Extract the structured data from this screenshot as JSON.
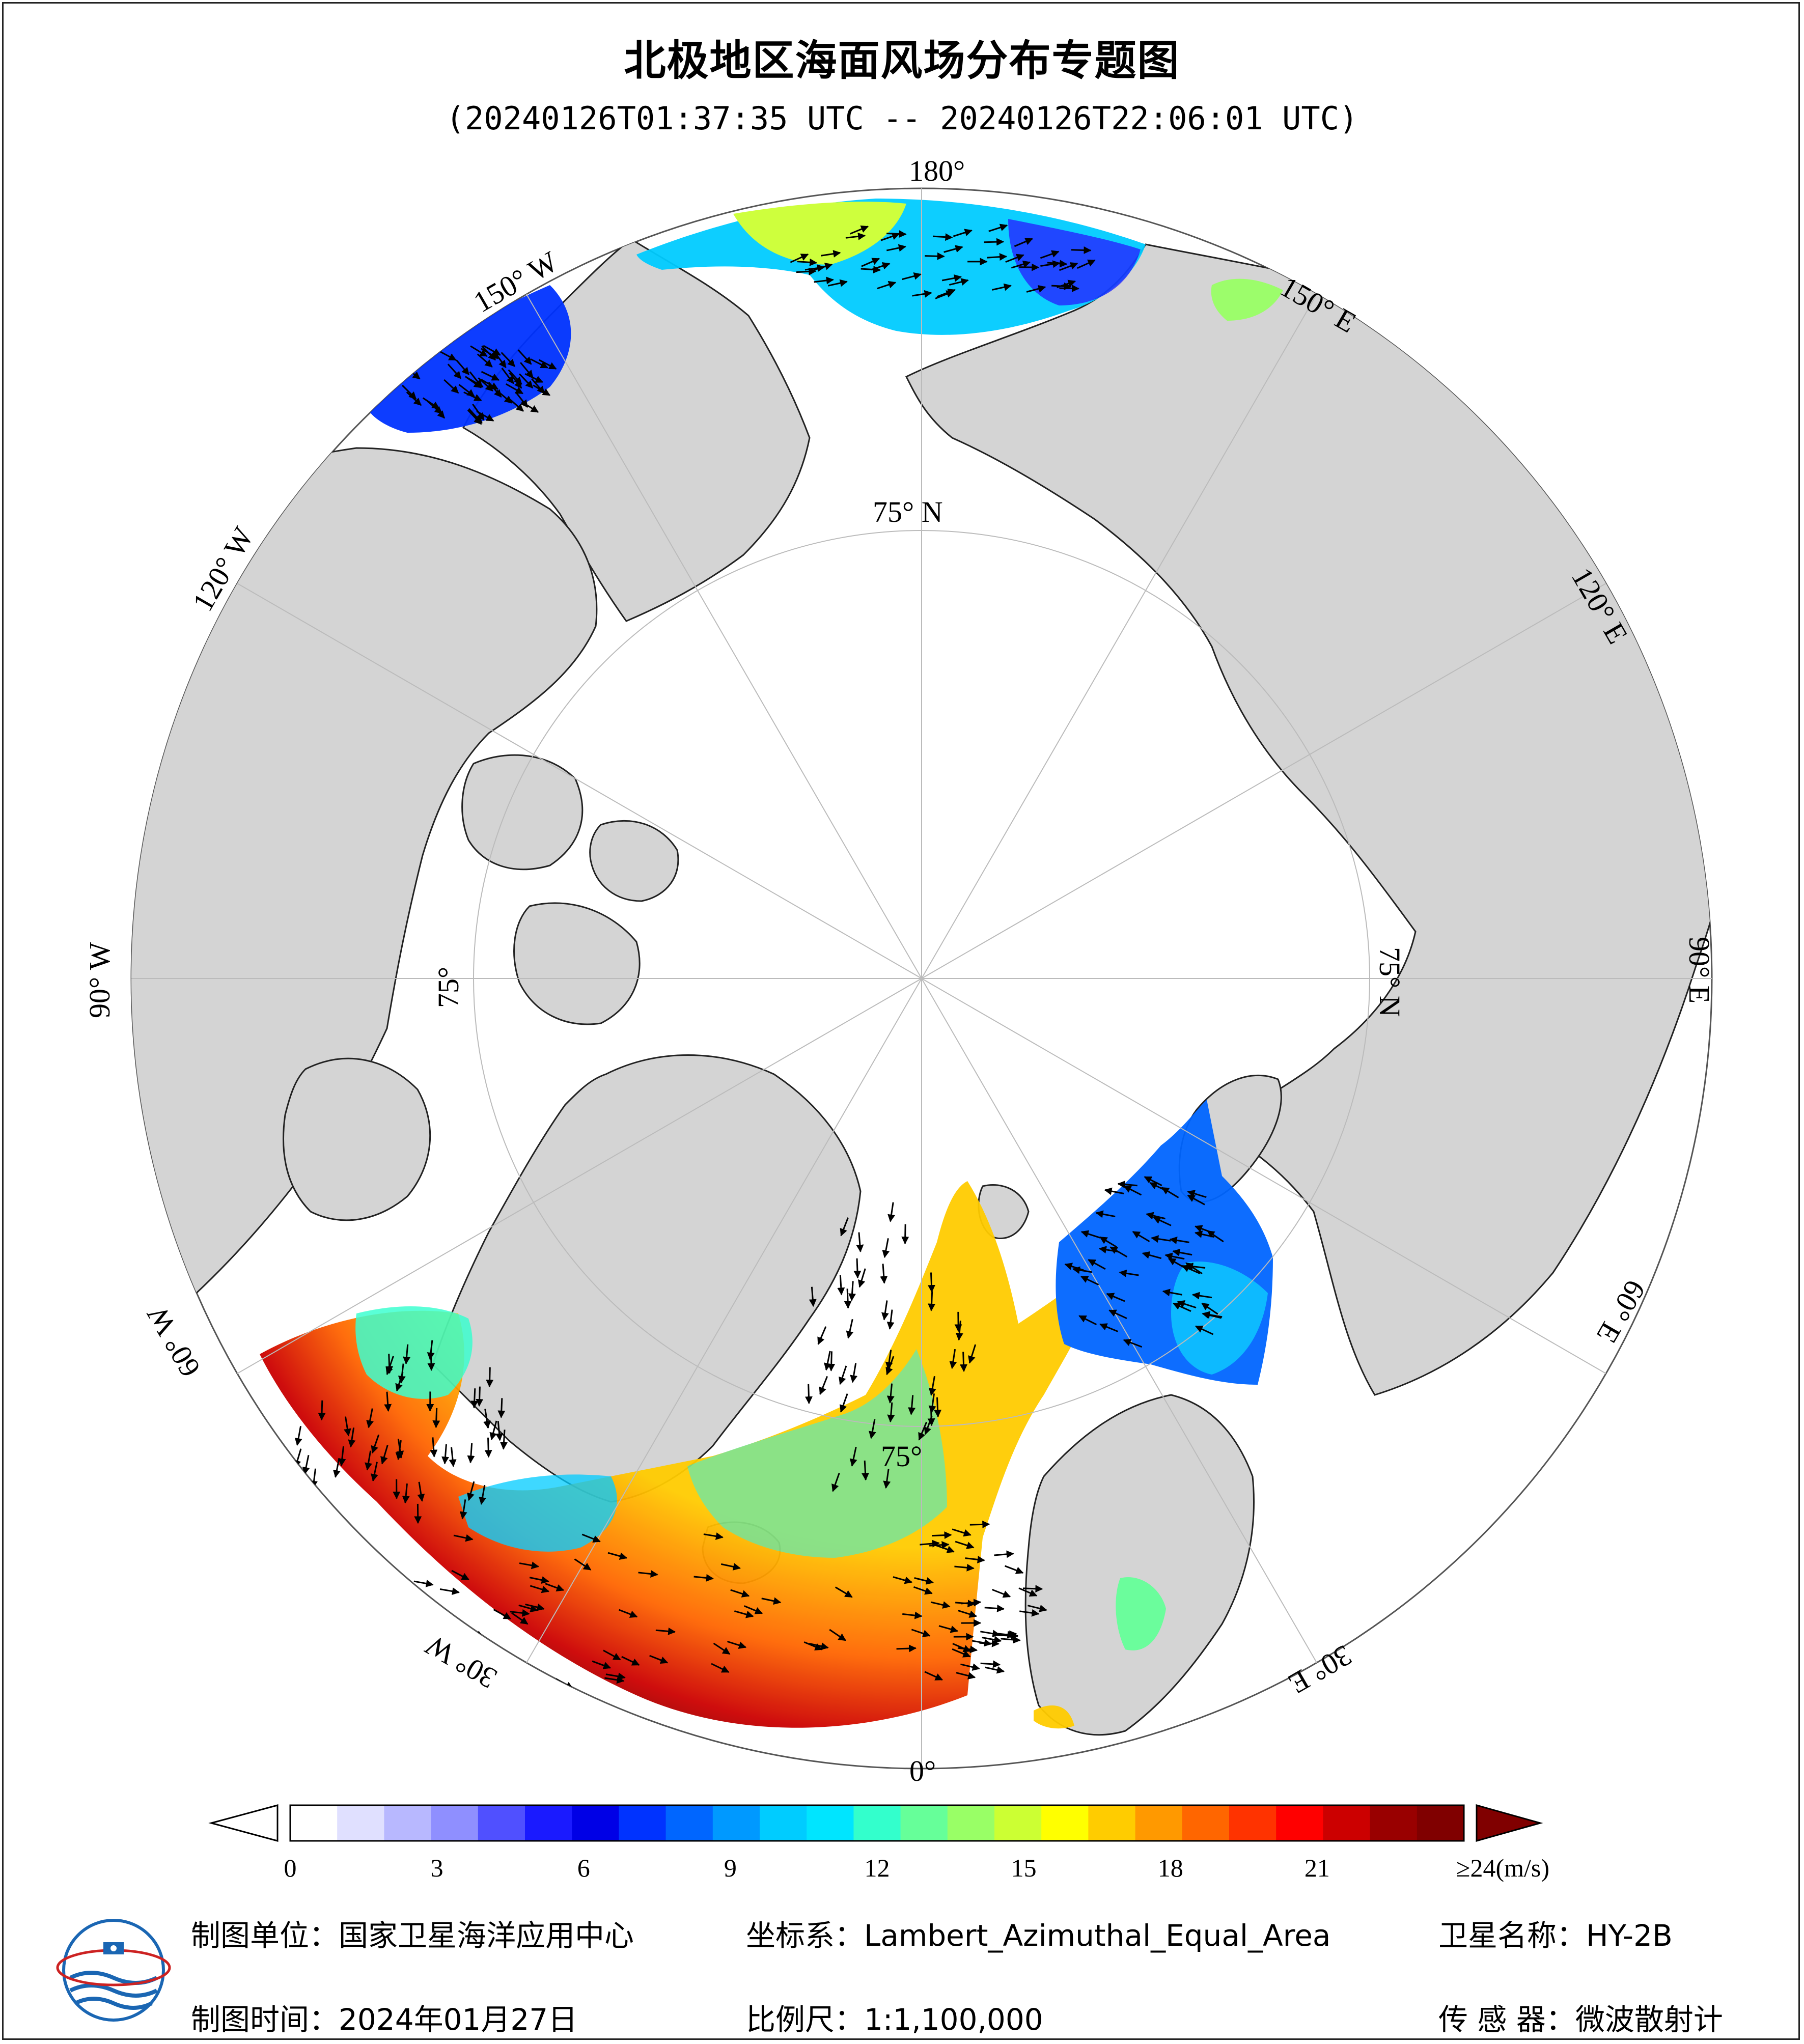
{
  "header": {
    "title": "北极地区海面风场分布专题图",
    "time_range": "(20240126T01:37:35 UTC -- 20240126T22:06:01 UTC)"
  },
  "map": {
    "projection": "Lambert_Azimuthal_Equal_Area",
    "center": "North Pole",
    "lon_labels": [
      "180°",
      "150° E",
      "120° E",
      "90° E",
      "60° E",
      "30° E",
      "0°",
      "30° W",
      "60° W",
      "90° W",
      "120° W",
      "150° W"
    ],
    "lat_labels": [
      "75° N",
      "75° N",
      "75°",
      "75°"
    ],
    "colors": {
      "land": "#d4d4d4",
      "sea_ice_and_ocean_nodata": "#ffffff",
      "outside": "#ffffff",
      "graticule": "#bbbbbb"
    }
  },
  "colorbar": {
    "unit_label": "≥24(m/s)",
    "ticks": [
      "0",
      "3",
      "6",
      "9",
      "12",
      "15",
      "18",
      "21"
    ],
    "min": 0,
    "max": 24,
    "extend": "both",
    "colors": [
      "#ffffff",
      "#e0e0ff",
      "#b8b8ff",
      "#8f8fff",
      "#5050ff",
      "#1a1aff",
      "#0000e6",
      "#0033ff",
      "#0066ff",
      "#0099ff",
      "#00ccff",
      "#00e5ff",
      "#33ffcc",
      "#66ff99",
      "#99ff66",
      "#ccff33",
      "#ffff00",
      "#ffcc00",
      "#ff9900",
      "#ff6600",
      "#ff3300",
      "#ff0000",
      "#cc0000",
      "#990000",
      "#800000"
    ]
  },
  "footer": {
    "unit": "制图单位：国家卫星海洋应用中心",
    "coord": "坐标系：Lambert_Azimuthal_Equal_Area",
    "satellite": "卫星名称：HY-2B",
    "date": "制图时间：2024年01月27日",
    "scale": "比例尺：1:1,100,000",
    "sensor": "传 感 器：微波散射计"
  }
}
